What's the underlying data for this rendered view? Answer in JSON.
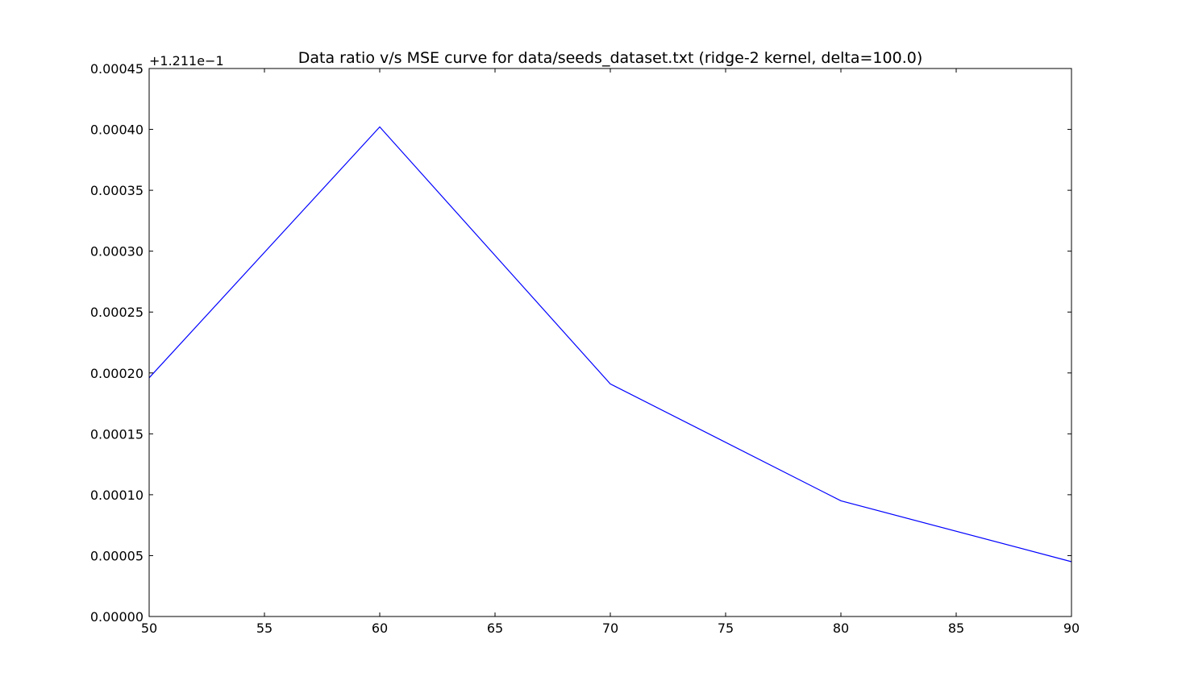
{
  "chart_data": {
    "type": "line",
    "title": "Data ratio v/s MSE curve for data/seeds_dataset.txt (ridge-2 kernel, delta=100.0)",
    "xlabel": "",
    "ylabel": "",
    "y_offset_label": "+1.211e−1",
    "xlim": [
      50,
      90
    ],
    "ylim": [
      0.0,
      0.00045
    ],
    "x_ticks": [
      50,
      55,
      60,
      65,
      70,
      75,
      80,
      85,
      90
    ],
    "x_tick_labels": [
      "50",
      "55",
      "60",
      "65",
      "70",
      "75",
      "80",
      "85",
      "90"
    ],
    "y_ticks": [
      0.0,
      5e-05,
      0.0001,
      0.00015,
      0.0002,
      0.00025,
      0.0003,
      0.00035,
      0.0004,
      0.00045
    ],
    "y_tick_labels": [
      "0.00000",
      "0.00005",
      "0.00010",
      "0.00015",
      "0.00020",
      "0.00025",
      "0.00030",
      "0.00035",
      "0.00040",
      "0.00045"
    ],
    "grid": false,
    "series": [
      {
        "color": "#0000ff",
        "x": [
          50,
          60,
          70,
          80,
          90
        ],
        "y": [
          0.000196,
          0.000402,
          0.000191,
          9.5e-05,
          4.5e-05
        ]
      }
    ]
  }
}
